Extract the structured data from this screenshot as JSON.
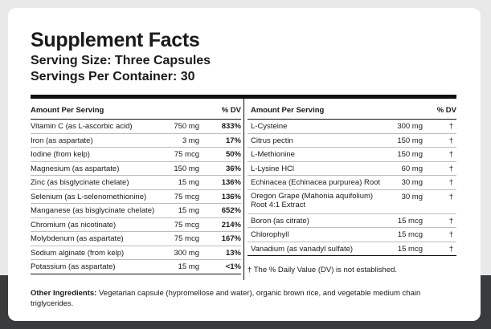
{
  "title": "Supplement Facts",
  "serving_size": "Serving Size: Three Capsules",
  "servings_per_container": "Servings Per Container: 30",
  "left_table": {
    "header_amount": "Amount Per Serving",
    "header_dv": "% DV",
    "rows": [
      {
        "name": "Vitamin C (as L-ascorbic acid)",
        "amount": "750 mg",
        "dv": "833%"
      },
      {
        "name": "Iron (as aspartate)",
        "amount": "3 mg",
        "dv": "17%"
      },
      {
        "name": "Iodine (from kelp)",
        "amount": "75 mcg",
        "dv": "50%"
      },
      {
        "name": "Magnesium (as aspartate)",
        "amount": "150 mg",
        "dv": "36%"
      },
      {
        "name": "Zinc (as bisglycinate chelate)",
        "amount": "15 mg",
        "dv": "136%"
      },
      {
        "name": "Selenium (as L-selenomethionine)",
        "amount": "75 mcg",
        "dv": "136%"
      },
      {
        "name": "Manganese (as bisglycinate chelate)",
        "amount": "15 mg",
        "dv": "652%"
      },
      {
        "name": "Chromium (as nicotinate)",
        "amount": "75 mcg",
        "dv": "214%"
      },
      {
        "name": "Molybdenum (as aspartate)",
        "amount": "75 mcg",
        "dv": "167%"
      },
      {
        "name": "Sodium alginate (from kelp)",
        "amount": "300 mg",
        "dv": "13%"
      },
      {
        "name": "Potassium (as aspartate)",
        "amount": "15 mg",
        "dv": "<1%"
      }
    ]
  },
  "right_table": {
    "header_amount": "Amount Per Serving",
    "header_dv": "% DV",
    "rows": [
      {
        "name": "L-Cysteine",
        "amount": "300 mg",
        "dv": "†"
      },
      {
        "name": "Citrus pectin",
        "amount": "150 mg",
        "dv": "†"
      },
      {
        "name": "L-Methionine",
        "amount": "150 mg",
        "dv": "†"
      },
      {
        "name": "L-Lysine HCl",
        "amount": "60 mg",
        "dv": "†"
      },
      {
        "name": "Echinacea (Echinacea purpurea) Root",
        "amount": "30 mg",
        "dv": "†"
      },
      {
        "name": "Oregon Grape (Mahonia aquifolium) Root 4:1 Extract",
        "amount": "30 mg",
        "dv": "†"
      },
      {
        "name": "Boron (as citrate)",
        "amount": "15 mcg",
        "dv": "†"
      },
      {
        "name": "Chlorophyll",
        "amount": "15 mcg",
        "dv": "†"
      },
      {
        "name": "Vanadium (as vanadyl sulfate)",
        "amount": "15 mcg",
        "dv": "†"
      }
    ],
    "footnote": "† The % Daily Value (DV) is not established."
  },
  "other_ingredients": {
    "label": "Other Ingredients:",
    "text": " Vegetarian capsule (hypromellose and water), organic brown rice, and vegetable medium chain triglycerides."
  }
}
